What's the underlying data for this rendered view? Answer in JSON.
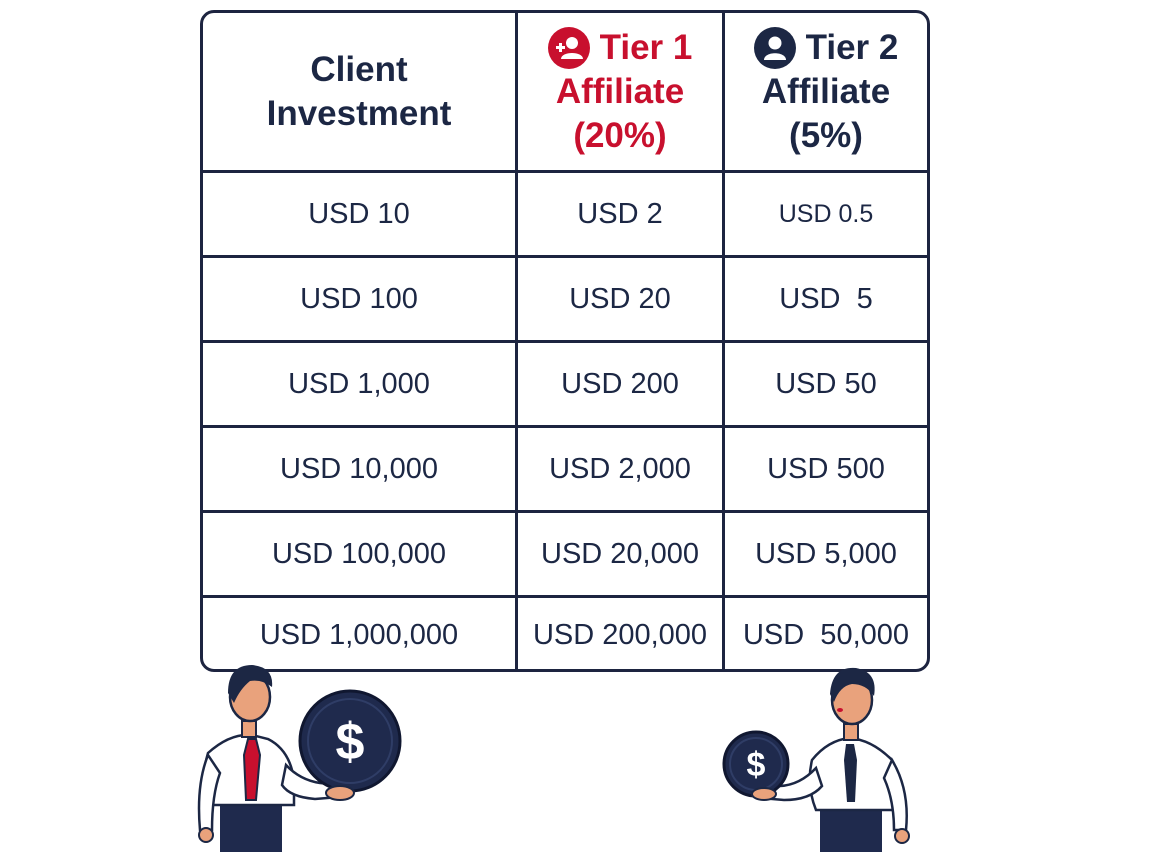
{
  "table": {
    "headers": {
      "client": [
        "Client",
        "Investment"
      ],
      "tier1": [
        "Tier 1",
        "Affiliate",
        "(20%)"
      ],
      "tier2": [
        "Tier 2",
        "Affiliate",
        "(5%)"
      ]
    },
    "rows": [
      [
        "USD 10",
        "USD 2",
        "USD 0.5"
      ],
      [
        "USD 100",
        "USD 20",
        "USD  5"
      ],
      [
        "USD 1,000",
        "USD 200",
        "USD 50"
      ],
      [
        "USD 10,000",
        "USD 2,000",
        "USD 500"
      ],
      [
        "USD 100,000",
        "USD 20,000",
        "USD 5,000"
      ],
      [
        "USD 1,000,000",
        "USD 200,000",
        "USD  50,000"
      ]
    ]
  },
  "illustrations": {
    "left_coin_symbol": "$",
    "right_coin_symbol": "$"
  },
  "colors": {
    "navy": "#1c2744",
    "red": "#c8102e",
    "coin_dark": "#1f2a4d"
  },
  "icons": [
    "add-user-icon",
    "user-icon",
    "dollar-coin-icon"
  ]
}
